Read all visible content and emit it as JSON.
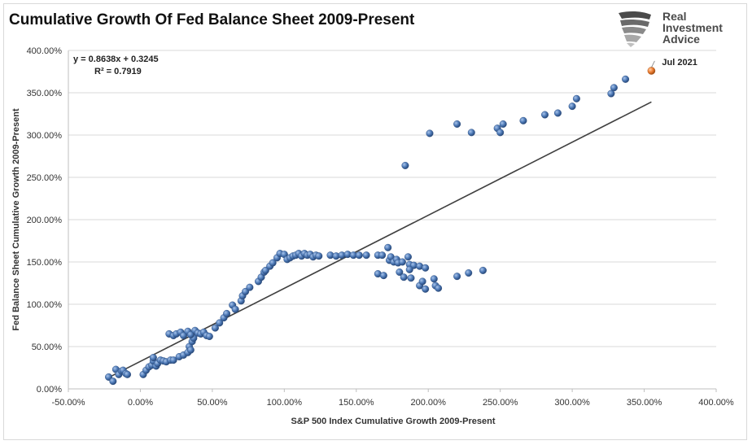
{
  "title": "Cumulative Growth Of Fed Balance Sheet 2009-Present",
  "logo": {
    "line1": "Real",
    "line2": "Investment",
    "line3": "Advice",
    "icon": "eagle-head-icon"
  },
  "chart_data": {
    "type": "scatter",
    "title": "Cumulative Growth Of Fed Balance Sheet 2009-Present",
    "xlabel": "S&P 500 Index Cumulative Growth 2009-Present",
    "ylabel": "Fed Balance Sheet Cumulative Growth 2009-Present",
    "xlim": [
      -0.5,
      4.0
    ],
    "ylim": [
      0,
      4.0
    ],
    "x_ticks": [
      "-50.00%",
      "0.00%",
      "50.00%",
      "100.00%",
      "150.00%",
      "200.00%",
      "250.00%",
      "300.00%",
      "350.00%",
      "400.00%"
    ],
    "y_ticks": [
      "0.00%",
      "50.00%",
      "100.00%",
      "150.00%",
      "200.00%",
      "250.00%",
      "300.00%",
      "350.00%",
      "400.00%"
    ],
    "grid": "horizontal",
    "marker_color": "#4f7bb8",
    "highlight_color": "#ed7d31",
    "trendline": {
      "slope": 0.8638,
      "intercept": 0.3245,
      "x_range": [
        -0.2,
        3.55
      ],
      "color": "#404040"
    },
    "equation_line1": "y = 0.8638x + 0.3245",
    "equation_line2": "R² = 0.7919",
    "annotation": {
      "label": "Jul 2021",
      "x": 3.55,
      "y": 3.76
    },
    "points": [
      [
        -0.22,
        0.14
      ],
      [
        -0.19,
        0.09
      ],
      [
        -0.17,
        0.23
      ],
      [
        -0.15,
        0.17
      ],
      [
        -0.13,
        0.21
      ],
      [
        -0.12,
        0.22
      ],
      [
        -0.1,
        0.18
      ],
      [
        -0.09,
        0.17
      ],
      [
        0.02,
        0.17
      ],
      [
        0.04,
        0.22
      ],
      [
        0.06,
        0.26
      ],
      [
        0.08,
        0.28
      ],
      [
        0.09,
        0.33
      ],
      [
        0.09,
        0.37
      ],
      [
        0.11,
        0.27
      ],
      [
        0.12,
        0.3
      ],
      [
        0.14,
        0.34
      ],
      [
        0.16,
        0.33
      ],
      [
        0.18,
        0.32
      ],
      [
        0.21,
        0.34
      ],
      [
        0.23,
        0.34
      ],
      [
        0.27,
        0.38
      ],
      [
        0.3,
        0.4
      ],
      [
        0.33,
        0.43
      ],
      [
        0.34,
        0.5
      ],
      [
        0.35,
        0.46
      ],
      [
        0.36,
        0.56
      ],
      [
        0.37,
        0.6
      ],
      [
        0.2,
        0.65
      ],
      [
        0.23,
        0.63
      ],
      [
        0.25,
        0.65
      ],
      [
        0.28,
        0.67
      ],
      [
        0.3,
        0.63
      ],
      [
        0.33,
        0.68
      ],
      [
        0.35,
        0.64
      ],
      [
        0.38,
        0.69
      ],
      [
        0.4,
        0.66
      ],
      [
        0.42,
        0.65
      ],
      [
        0.44,
        0.67
      ],
      [
        0.46,
        0.63
      ],
      [
        0.48,
        0.62
      ],
      [
        0.52,
        0.72
      ],
      [
        0.55,
        0.78
      ],
      [
        0.58,
        0.84
      ],
      [
        0.6,
        0.89
      ],
      [
        0.64,
        0.99
      ],
      [
        0.66,
        0.94
      ],
      [
        0.7,
        1.04
      ],
      [
        0.71,
        1.1
      ],
      [
        0.73,
        1.15
      ],
      [
        0.76,
        1.2
      ],
      [
        0.82,
        1.27
      ],
      [
        0.84,
        1.32
      ],
      [
        0.86,
        1.38
      ],
      [
        0.87,
        1.4
      ],
      [
        0.9,
        1.45
      ],
      [
        0.92,
        1.49
      ],
      [
        0.95,
        1.55
      ],
      [
        0.97,
        1.6
      ],
      [
        1.0,
        1.59
      ],
      [
        1.02,
        1.53
      ],
      [
        1.04,
        1.55
      ],
      [
        1.06,
        1.57
      ],
      [
        1.08,
        1.58
      ],
      [
        1.1,
        1.6
      ],
      [
        1.12,
        1.57
      ],
      [
        1.14,
        1.6
      ],
      [
        1.16,
        1.58
      ],
      [
        1.18,
        1.59
      ],
      [
        1.2,
        1.56
      ],
      [
        1.22,
        1.58
      ],
      [
        1.24,
        1.57
      ],
      [
        1.32,
        1.58
      ],
      [
        1.36,
        1.57
      ],
      [
        1.4,
        1.58
      ],
      [
        1.44,
        1.59
      ],
      [
        1.48,
        1.58
      ],
      [
        1.52,
        1.58
      ],
      [
        1.57,
        1.58
      ],
      [
        1.65,
        1.58
      ],
      [
        1.68,
        1.58
      ],
      [
        1.72,
        1.67
      ],
      [
        1.73,
        1.52
      ],
      [
        1.74,
        1.56
      ],
      [
        1.76,
        1.5
      ],
      [
        1.78,
        1.53
      ],
      [
        1.79,
        1.49
      ],
      [
        1.82,
        1.5
      ],
      [
        1.86,
        1.56
      ],
      [
        1.87,
        1.47
      ],
      [
        1.9,
        1.46
      ],
      [
        1.94,
        1.45
      ],
      [
        1.98,
        1.43
      ],
      [
        1.65,
        1.36
      ],
      [
        1.69,
        1.34
      ],
      [
        1.8,
        1.38
      ],
      [
        1.83,
        1.32
      ],
      [
        1.87,
        1.41
      ],
      [
        1.88,
        1.31
      ],
      [
        1.94,
        1.22
      ],
      [
        1.96,
        1.27
      ],
      [
        1.98,
        1.18
      ],
      [
        2.04,
        1.3
      ],
      [
        2.05,
        1.22
      ],
      [
        2.07,
        1.19
      ],
      [
        2.2,
        1.33
      ],
      [
        2.28,
        1.37
      ],
      [
        2.38,
        1.4
      ],
      [
        1.84,
        2.64
      ],
      [
        2.01,
        3.02
      ],
      [
        2.2,
        3.13
      ],
      [
        2.3,
        3.03
      ],
      [
        2.48,
        3.08
      ],
      [
        2.5,
        3.03
      ],
      [
        2.52,
        3.13
      ],
      [
        2.66,
        3.17
      ],
      [
        2.81,
        3.24
      ],
      [
        2.9,
        3.26
      ],
      [
        3.0,
        3.34
      ],
      [
        3.03,
        3.43
      ],
      [
        3.27,
        3.49
      ],
      [
        3.29,
        3.56
      ],
      [
        3.37,
        3.66
      ]
    ]
  }
}
